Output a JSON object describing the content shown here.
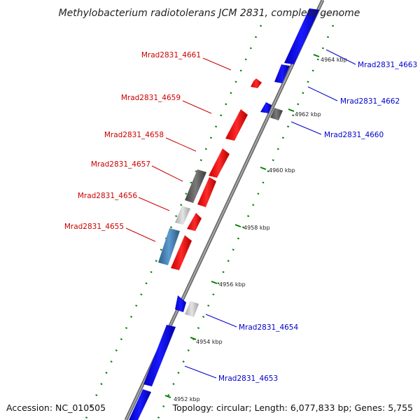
{
  "title": "Methylobacterium radiotolerans JCM 2831, complete genome",
  "footer": {
    "accession": "Accession: NC_010505",
    "summary": "Topology: circular; Length: 6,077,833 bp; Genes: 5,755"
  },
  "colors": {
    "forward_label": "#cc0000",
    "reverse_label": "#0000cc",
    "forward_gene": "#ff0000",
    "reverse_gene": "#0000ff",
    "gray_gene": "#5a5a5a",
    "light_gray_gene": "#c8c8c8",
    "steel_gene": "#4682b4",
    "tick": "#008000",
    "backbone": "#808080"
  },
  "kbp_ticks": [
    "4952 kbp",
    "4954 kbp",
    "4956 kbp",
    "4958 kbp",
    "4960 kbp",
    "4962 kbp",
    "4964 kbp"
  ],
  "gene_labels": {
    "left": [
      "Mrad2831_4661",
      "Mrad2831_4659",
      "Mrad2831_4658",
      "Mrad2831_4657",
      "Mrad2831_4656",
      "Mrad2831_4655"
    ],
    "right": [
      "Mrad2831_4663",
      "Mrad2831_4662",
      "Mrad2831_4660",
      "Mrad2831_4654",
      "Mrad2831_4653"
    ]
  }
}
